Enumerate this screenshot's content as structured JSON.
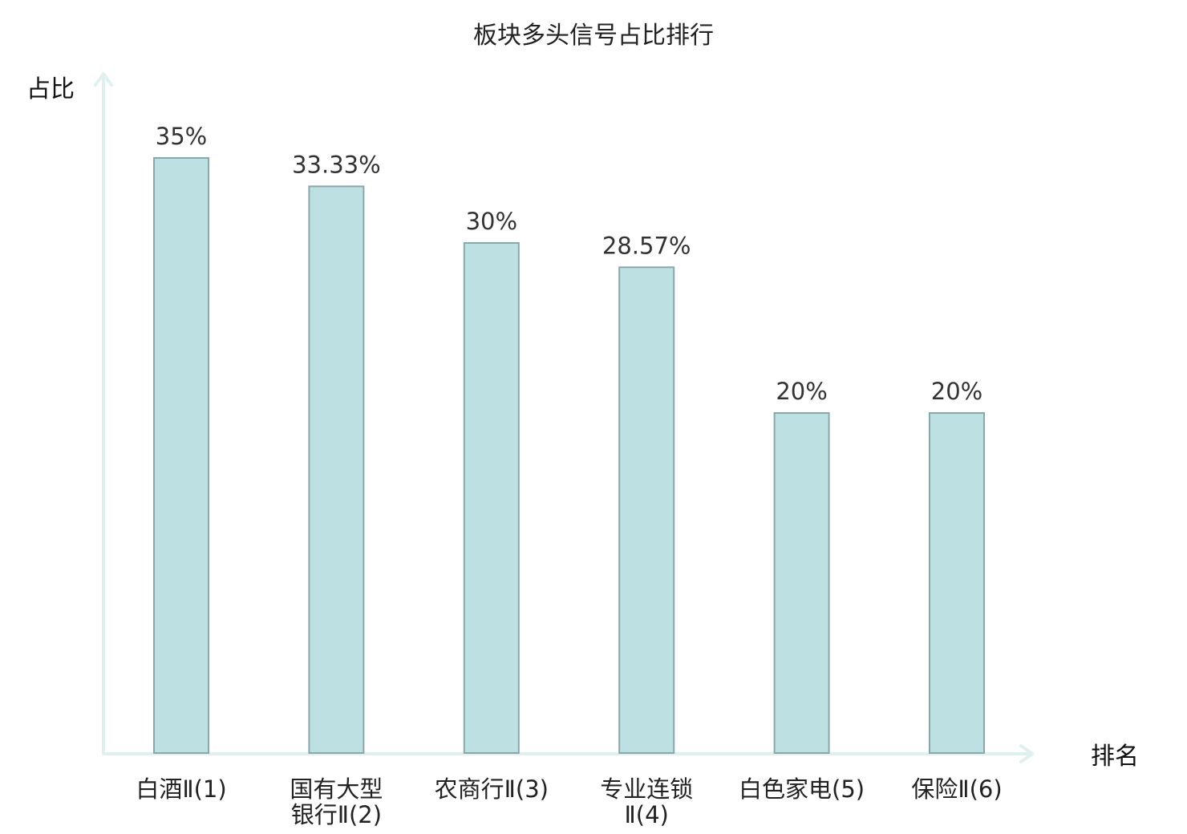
{
  "chart_data": {
    "type": "bar",
    "title": "板块多头信号占比排行",
    "ylabel": "占比",
    "xlabel": "排名",
    "ylim": [
      0,
      40
    ],
    "grid": false,
    "legend": "none",
    "categories": [
      {
        "lines": [
          "白酒Ⅱ(1)"
        ],
        "highlight": false
      },
      {
        "lines": [
          "国有大型",
          "银行Ⅱ(2)"
        ],
        "highlight": false
      },
      {
        "lines": [
          "农商行Ⅱ(3)"
        ],
        "highlight": false
      },
      {
        "lines": [
          "专业连锁",
          "Ⅱ(4)"
        ],
        "highlight": false
      },
      {
        "lines": [
          "白色家电(5)"
        ],
        "highlight": false
      },
      {
        "lines": [
          "保险Ⅱ(6)"
        ],
        "highlight": true
      }
    ],
    "values": [
      35,
      33.33,
      30,
      28.57,
      20,
      20
    ],
    "value_labels": [
      "35%",
      "33.33%",
      "30%",
      "28.57%",
      "20%",
      "20%"
    ],
    "colors": {
      "bar_fill": "#bde0e3",
      "bar_stroke": "#8aa8aa",
      "axis": "#dff1ef",
      "highlight_text": "#e02020"
    }
  }
}
